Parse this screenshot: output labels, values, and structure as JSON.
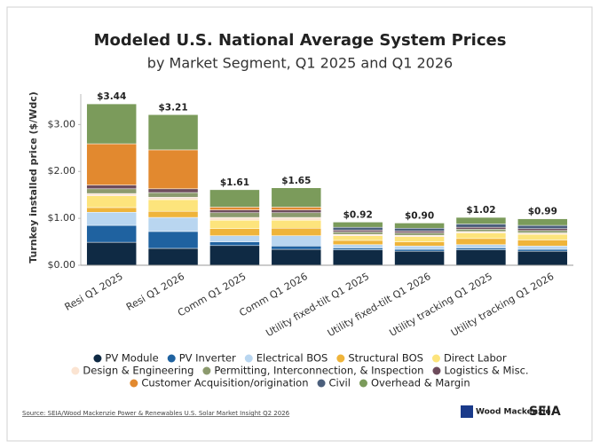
{
  "chart_data": {
    "type": "stacked_bar",
    "title": "Modeled U.S. National Average System Prices",
    "subtitle": "by Market Segment, Q1 2025 and Q1 2026",
    "y_label": "Turnkey installed price ($/Wdc)",
    "categories": [
      "Resi Q1 2025",
      "Resi Q1 2026",
      "Comm Q1 2025",
      "Comm Q1 2026",
      "Utility fixed-tilt Q1 2025",
      "Utility fixed-tilt Q1 2026",
      "Utility tracking Q1 2025",
      "Utility tracking Q1 2026"
    ],
    "series": [
      {
        "name": "PV Module",
        "color": "#0f2a44",
        "values": [
          0.49,
          0.36,
          0.42,
          0.34,
          0.33,
          0.3,
          0.33,
          0.3
        ]
      },
      {
        "name": "PV Inverter",
        "color": "#1f62a0",
        "values": [
          0.36,
          0.36,
          0.08,
          0.07,
          0.04,
          0.04,
          0.04,
          0.04
        ]
      },
      {
        "name": "Electrical BOS",
        "color": "#b9d6f0",
        "values": [
          0.28,
          0.3,
          0.13,
          0.22,
          0.07,
          0.07,
          0.07,
          0.07
        ]
      },
      {
        "name": "Structural BOS",
        "color": "#efb43a",
        "values": [
          0.1,
          0.13,
          0.15,
          0.16,
          0.09,
          0.09,
          0.13,
          0.13
        ]
      },
      {
        "name": "Direct Labor",
        "color": "#fde47c",
        "values": [
          0.25,
          0.25,
          0.18,
          0.17,
          0.1,
          0.11,
          0.12,
          0.12
        ]
      },
      {
        "name": "Design & Engineering",
        "color": "#fbe4d2",
        "values": [
          0.05,
          0.05,
          0.06,
          0.06,
          0.03,
          0.03,
          0.03,
          0.03
        ]
      },
      {
        "name": "Permitting, Interconnection, & Inspection",
        "color": "#8c9a6e",
        "values": [
          0.1,
          0.1,
          0.1,
          0.1,
          0.05,
          0.05,
          0.05,
          0.05
        ]
      },
      {
        "name": "Logistics & Misc.",
        "color": "#6e4c5c",
        "values": [
          0.08,
          0.08,
          0.06,
          0.06,
          0.04,
          0.04,
          0.04,
          0.04
        ]
      },
      {
        "name": "Customer Acquisition/origination",
        "color": "#e2892f",
        "values": [
          0.88,
          0.83,
          0.06,
          0.06,
          0,
          0,
          0,
          0
        ]
      },
      {
        "name": "Civil",
        "color": "#4b5f7c",
        "values": [
          0,
          0,
          0,
          0,
          0.06,
          0.06,
          0.07,
          0.07
        ]
      },
      {
        "name": "Overhead & Margin",
        "color": "#7b9b5b",
        "values": [
          0.85,
          0.75,
          0.37,
          0.41,
          0.11,
          0.11,
          0.14,
          0.14
        ]
      }
    ],
    "totals": {
      "values": [
        3.44,
        3.21,
        1.61,
        1.65,
        0.92,
        0.9,
        1.02,
        0.99
      ],
      "value_labels": [
        "$3.44",
        "$3.21",
        "$1.61",
        "$1.65",
        "$0.92",
        "$0.90",
        "$1.02",
        "$0.99"
      ]
    },
    "ylim": [
      0,
      3.65
    ],
    "yticks": [
      {
        "value": 0,
        "label": "$0.00"
      },
      {
        "value": 1,
        "label": "$1.00"
      },
      {
        "value": 2,
        "label": "$2.00"
      },
      {
        "value": 3,
        "label": "$3.00"
      }
    ],
    "grid": false,
    "legend": "bottom",
    "source": "Source: SEIA/Wood Mackenzie Power & Renewables U.S. Solar Market Insight Q2 2026",
    "logos": [
      "Wood Mackenzie",
      "SEIA"
    ]
  }
}
